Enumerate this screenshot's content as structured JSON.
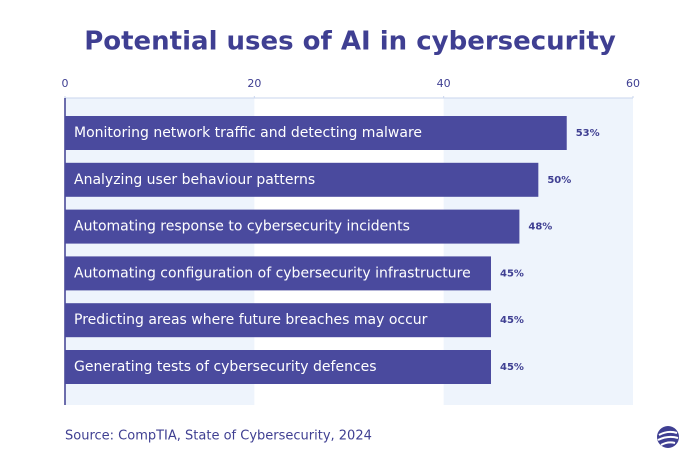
{
  "chart_data": {
    "type": "bar",
    "orientation": "horizontal",
    "title": "Potential uses of AI in cybersecurity",
    "categories": [
      "Monitoring network traffic and detecting malware",
      "Analyzing user behaviour patterns",
      "Automating response to cybersecurity incidents",
      "Automating configuration of cybersecurity infrastructure",
      "Predicting areas where future breaches may occur",
      "Generating tests of cybersecurity defences"
    ],
    "values": [
      53,
      50,
      48,
      45,
      45,
      45
    ],
    "value_labels": [
      "53%",
      "50%",
      "48%",
      "45%",
      "45%",
      "45%"
    ],
    "color": "#4a4a9e",
    "xlim": [
      0,
      60
    ],
    "xticks": [
      0,
      20,
      40,
      60
    ],
    "source": "Source:  CompTIA, State of Cybersecurity, 2024"
  }
}
